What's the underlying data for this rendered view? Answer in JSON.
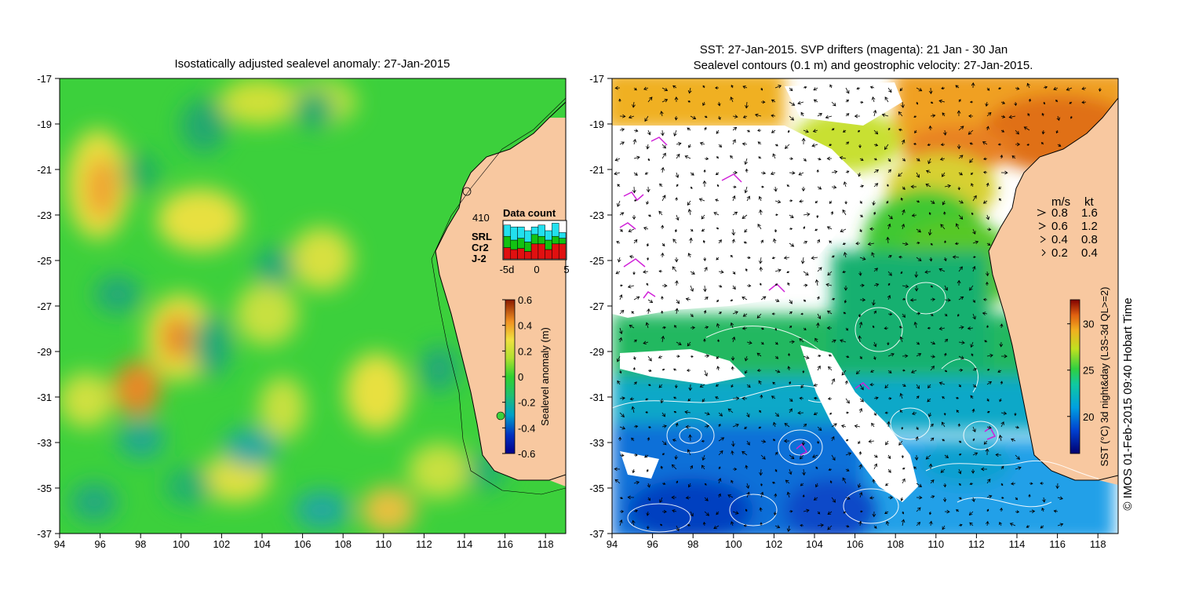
{
  "left_panel": {
    "title": "Isostatically adjusted sealevel anomaly: 27-Jan-2015",
    "x_ticks": [
      "94",
      "96",
      "98",
      "100",
      "102",
      "104",
      "106",
      "108",
      "110",
      "112",
      "114",
      "116",
      "118"
    ],
    "y_ticks": [
      "-17",
      "-19",
      "-21",
      "-23",
      "-25",
      "-27",
      "-29",
      "-31",
      "-33",
      "-35",
      "-37"
    ],
    "colorbar": {
      "label": "Sealevel anomaly (m)",
      "ticks": [
        "0.6",
        "0.4",
        "0.2",
        "0",
        "-0.2",
        "-0.4",
        "-0.6"
      ]
    },
    "data_count": {
      "title": "Data count",
      "total": "410",
      "legend": [
        {
          "label": "SRL",
          "color": "#22e0ee"
        },
        {
          "label": "Cr2",
          "color": "#12c212"
        },
        {
          "label": "J-2",
          "color": "#e01010"
        }
      ],
      "x_ticks": [
        "-5d",
        "0",
        "5"
      ],
      "bars": [
        {
          "j2": 0.3,
          "cr2": 0.3,
          "srl": 0.3
        },
        {
          "j2": 0.25,
          "cr2": 0.25,
          "srl": 0.35
        },
        {
          "j2": 0.28,
          "cr2": 0.27,
          "srl": 0.3
        },
        {
          "j2": 0.2,
          "cr2": 0.25,
          "srl": 0.3
        },
        {
          "j2": 0.4,
          "cr2": 0.25,
          "srl": 0.2
        },
        {
          "j2": 0.4,
          "cr2": 0.2,
          "srl": 0.3
        },
        {
          "j2": 0.25,
          "cr2": 0.25,
          "srl": 0.25
        },
        {
          "j2": 0.4,
          "cr2": 0.2,
          "srl": 0.35
        },
        {
          "j2": 0.4,
          "cr2": 0.15,
          "srl": 0.15
        }
      ]
    }
  },
  "right_panel": {
    "title_line1": "SST: 27-Jan-2015. SVP drifters (magenta): 21 Jan - 30 Jan",
    "title_line2": "Sealevel contours (0.1 m) and geostrophic velocity: 27-Jan-2015.",
    "x_ticks": [
      "94",
      "96",
      "98",
      "100",
      "102",
      "104",
      "106",
      "108",
      "110",
      "112",
      "114",
      "116",
      "118"
    ],
    "y_ticks": [
      "-17",
      "-19",
      "-21",
      "-23",
      "-25",
      "-27",
      "-29",
      "-31",
      "-33",
      "-35",
      "-37"
    ],
    "velocity_legend": {
      "header_ms": "m/s",
      "header_kt": "kt",
      "rows": [
        {
          "ms": "0.8",
          "kt": "1.6"
        },
        {
          "ms": "0.6",
          "kt": "1.2"
        },
        {
          "ms": "0.4",
          "kt": "0.8"
        },
        {
          "ms": "0.2",
          "kt": "0.4"
        }
      ]
    },
    "colorbar": {
      "label": "SST (°C) 3d night&day (L3S-3d QL>=2)",
      "ticks": [
        "30",
        "25",
        "20"
      ]
    }
  },
  "credit": "© IMOS 01-Feb-2015 09:40 Hobart Time",
  "colors": {
    "land": "#f8c8a0",
    "sla_zero": "#38d838",
    "sst_warm": "#f0a020",
    "drifter": "#d020d8"
  }
}
